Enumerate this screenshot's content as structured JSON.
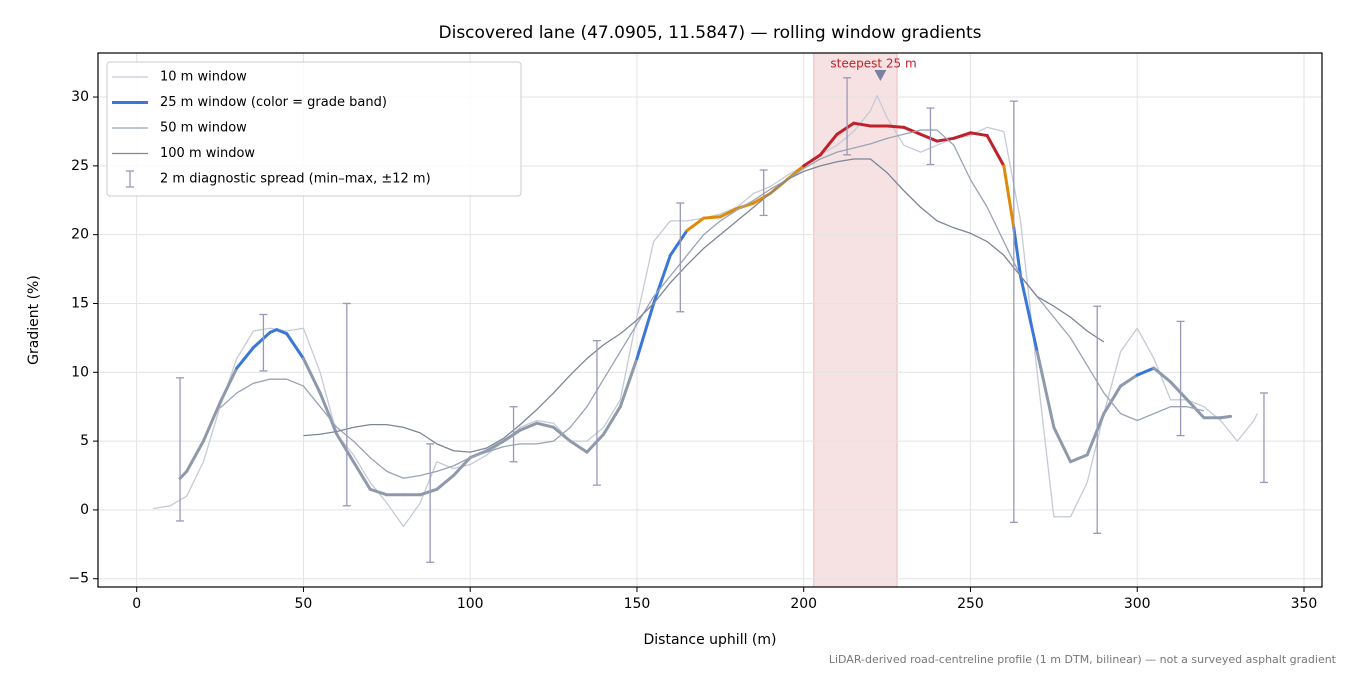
{
  "chart_data": {
    "type": "line",
    "title": "Discovered lane (47.0905, 11.5847) — rolling window gradients",
    "x_label": "Distance uphill (m)",
    "y_label": "Gradient (%)",
    "footnote": "LiDAR-derived road-centreline profile (1 m DTM, bilinear) — not a surveyed asphalt gradient",
    "xlim": [
      -11.6,
      355.4
    ],
    "ylim": [
      -5.6,
      33.2
    ],
    "xticks": [
      0,
      50,
      100,
      150,
      200,
      250,
      300,
      350
    ],
    "yticks": [
      {
        "value": -5,
        "label": "−5"
      },
      0,
      5,
      10,
      15,
      20,
      25,
      30
    ],
    "grid": true,
    "legend": "upper left",
    "series": [
      {
        "name": "10 m window",
        "color": "#c5cbd6",
        "width": 1.3,
        "x": [
          5,
          10,
          15,
          20,
          25,
          30,
          35,
          40,
          45,
          50,
          55,
          60,
          65,
          70,
          75,
          80,
          85,
          90,
          95,
          100,
          105,
          110,
          115,
          120,
          125,
          130,
          135,
          140,
          145,
          150,
          155,
          160,
          165,
          170,
          175,
          180,
          185,
          190,
          195,
          200,
          205,
          210,
          215,
          220,
          222,
          225,
          230,
          235,
          240,
          245,
          250,
          255,
          260,
          265,
          270,
          275,
          280,
          285,
          290,
          295,
          300,
          305,
          310,
          315,
          320,
          325,
          330,
          335,
          336
        ],
        "values": [
          0.1,
          0.3,
          1.0,
          3.5,
          7.5,
          11,
          13,
          13.2,
          13,
          13.2,
          10,
          5.5,
          4,
          2,
          0.5,
          -1.2,
          0.5,
          3.5,
          3,
          3.3,
          4,
          5,
          6,
          6.5,
          6.3,
          5,
          5,
          6,
          8,
          14,
          19.5,
          21,
          21,
          21.2,
          21.5,
          22,
          23,
          23.5,
          24.3,
          25,
          25.8,
          26.5,
          27.5,
          29,
          30.1,
          28.5,
          26.5,
          26,
          26.5,
          27,
          27.2,
          27.8,
          27.5,
          21,
          10,
          -0.5,
          -0.5,
          2,
          7,
          11.5,
          13.2,
          11,
          8,
          8,
          7.5,
          6.5,
          5,
          6.5,
          7
        ]
      },
      {
        "name": "25 m window (color = grade band)",
        "color": "#3a78d8",
        "width": 3,
        "color_bands": [
          {
            "upto": 10,
            "color": "#8e9aab"
          },
          {
            "upto": 20,
            "color": "#3a78d8"
          },
          {
            "upto": 25,
            "color": "#e08a0a"
          },
          {
            "color": "#c0202a"
          }
        ],
        "x": [
          13,
          15,
          20,
          25,
          30,
          35,
          40,
          42,
          45,
          50,
          55,
          60,
          65,
          70,
          75,
          80,
          85,
          90,
          95,
          100,
          105,
          110,
          115,
          120,
          125,
          130,
          135,
          140,
          145,
          150,
          155,
          160,
          165,
          170,
          175,
          180,
          185,
          190,
          195,
          200,
          205,
          210,
          215,
          220,
          225,
          230,
          235,
          240,
          245,
          250,
          255,
          260,
          263,
          265,
          270,
          275,
          280,
          285,
          290,
          295,
          300,
          305,
          310,
          315,
          320,
          325,
          328
        ],
        "values": [
          2.3,
          2.8,
          5,
          7.8,
          10.3,
          11.8,
          12.9,
          13.1,
          12.8,
          11,
          8.5,
          5.5,
          3.5,
          1.5,
          1.1,
          1.1,
          1.1,
          1.5,
          2.5,
          3.8,
          4.3,
          5,
          5.8,
          6.3,
          6,
          5,
          4.2,
          5.5,
          7.5,
          11,
          15,
          18.5,
          20.3,
          21.2,
          21.3,
          21.9,
          22.3,
          23,
          24,
          25,
          25.8,
          27.3,
          28.1,
          27.9,
          27.9,
          27.8,
          27.3,
          26.8,
          27,
          27.4,
          27.2,
          25,
          20.5,
          17,
          11.5,
          6,
          3.5,
          4,
          7,
          9,
          9.8,
          10.3,
          9.3,
          8,
          6.7,
          6.7,
          6.8
        ]
      },
      {
        "name": "50 m window",
        "color": "#9aa3b5",
        "width": 1.3,
        "x": [
          25,
          30,
          35,
          40,
          45,
          50,
          55,
          60,
          65,
          70,
          75,
          80,
          85,
          90,
          95,
          100,
          105,
          110,
          115,
          120,
          125,
          130,
          135,
          140,
          145,
          150,
          155,
          160,
          165,
          170,
          175,
          180,
          185,
          190,
          195,
          200,
          205,
          210,
          215,
          220,
          225,
          230,
          235,
          240,
          245,
          250,
          255,
          260,
          265,
          270,
          275,
          280,
          285,
          290,
          295,
          300,
          305,
          310,
          315,
          320
        ],
        "values": [
          7.4,
          8.5,
          9.2,
          9.5,
          9.5,
          9,
          7.5,
          6,
          5,
          3.8,
          2.8,
          2.3,
          2.5,
          2.8,
          3.2,
          3.8,
          4.2,
          4.6,
          4.8,
          4.8,
          5,
          6,
          7.5,
          9.5,
          11.5,
          13.5,
          15.5,
          17,
          18.5,
          20,
          21,
          21.8,
          22.5,
          23.3,
          24,
          24.8,
          25.5,
          26,
          26.3,
          26.6,
          27,
          27.3,
          27.6,
          27.6,
          26.5,
          24,
          22,
          19.5,
          17,
          15.5,
          14,
          12.5,
          10.5,
          8.5,
          7,
          6.5,
          7,
          7.5,
          7.5,
          7.2
        ]
      },
      {
        "name": "100 m window",
        "color": "#7d8596",
        "width": 1.3,
        "x": [
          50,
          55,
          60,
          65,
          70,
          75,
          80,
          85,
          90,
          95,
          100,
          105,
          110,
          115,
          120,
          125,
          130,
          135,
          140,
          145,
          150,
          155,
          160,
          165,
          170,
          175,
          180,
          185,
          190,
          195,
          200,
          205,
          210,
          215,
          220,
          225,
          230,
          235,
          240,
          245,
          250,
          255,
          260,
          265,
          270,
          275,
          280,
          285,
          290
        ],
        "values": [
          5.4,
          5.5,
          5.7,
          6,
          6.2,
          6.2,
          6,
          5.6,
          4.8,
          4.3,
          4.2,
          4.5,
          5.2,
          6.2,
          7.3,
          8.5,
          9.8,
          11,
          12,
          12.8,
          13.8,
          15,
          16.5,
          17.8,
          19,
          20,
          21,
          22,
          23,
          24,
          24.6,
          25,
          25.3,
          25.5,
          25.5,
          24.5,
          23.2,
          22,
          21,
          20.5,
          20.1,
          19.5,
          18.5,
          17,
          15.5,
          14.8,
          14,
          13,
          12.2
        ]
      }
    ],
    "spread": {
      "name": "2 m diagnostic spread (min–max, ±12 m)",
      "color": "#9a98b8",
      "x": [
        13,
        38,
        63,
        88,
        113,
        138,
        163,
        188,
        213,
        238,
        263,
        288,
        313,
        338
      ],
      "low": [
        -0.8,
        10.1,
        0.3,
        -3.8,
        3.5,
        1.8,
        14.4,
        21.4,
        25.8,
        25.1,
        -0.9,
        -1.7,
        5.4,
        2
      ],
      "high": [
        9.6,
        14.2,
        15,
        4.8,
        7.5,
        12.3,
        22.3,
        24.7,
        31.4,
        29.2,
        29.7,
        14.8,
        13.7,
        8.5
      ]
    },
    "highlight": {
      "label": "steepest 25 m",
      "color": "#c0202a",
      "xmin": 203,
      "xmax": 228,
      "marker_x": 223,
      "marker_y": 31.6
    }
  }
}
